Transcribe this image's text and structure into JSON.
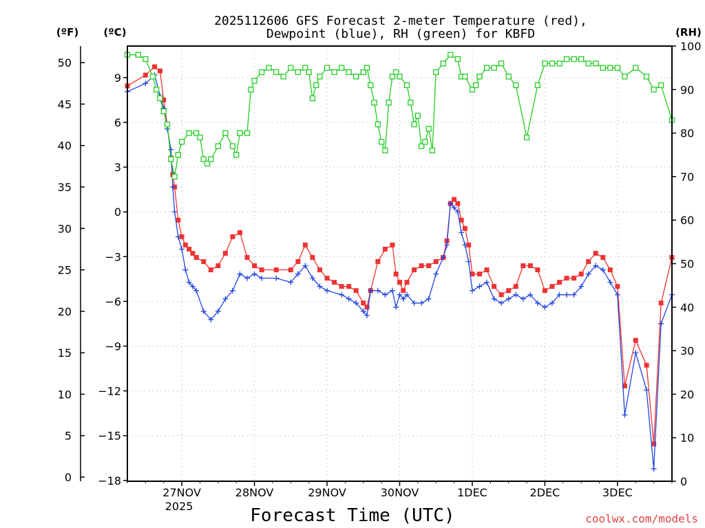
{
  "chart_data": {
    "type": "line",
    "title_line1": "2025112606 GFS Forecast 2-meter Temperature (red),",
    "title_line2": "Dewpoint (blue), RH (green) for KBFD",
    "xlabel": "Forecast Time (UTC)",
    "credit": "coolwx.com/models",
    "unit_f": "(ºF)",
    "unit_c": "(ºC)",
    "unit_rh": "(RH)",
    "x_range": [
      0.25,
      7.75
    ],
    "x_ticks": [
      {
        "x": 1,
        "label": "27NOV",
        "sub": "2025"
      },
      {
        "x": 2,
        "label": "28NOV",
        "sub": ""
      },
      {
        "x": 3,
        "label": "29NOV",
        "sub": ""
      },
      {
        "x": 4,
        "label": "30NOV",
        "sub": ""
      },
      {
        "x": 5,
        "label": "1DEC",
        "sub": ""
      },
      {
        "x": 6,
        "label": "2DEC",
        "sub": ""
      },
      {
        "x": 7,
        "label": "3DEC",
        "sub": ""
      }
    ],
    "y_f_range": [
      -0.5,
      52
    ],
    "y_f_ticks": [
      "50",
      "45",
      "40",
      "35",
      "30",
      "25",
      "20",
      "15",
      "10",
      "5",
      "0"
    ],
    "y_c_ticks": [
      "9",
      "6",
      "3",
      "0",
      "−3",
      "−6",
      "−9",
      "−12",
      "−15",
      "−18"
    ],
    "y_rh_range": [
      0,
      100
    ],
    "y_rh_ticks": [
      "100",
      "90",
      "80",
      "70",
      "60",
      "50",
      "40",
      "30",
      "20",
      "10",
      "0"
    ],
    "series": [
      {
        "name": "Temperature",
        "color": "#ee3333",
        "marker": "filled-square",
        "points": [
          [
            0.25,
            47.2
          ],
          [
            0.5,
            48.5
          ],
          [
            0.625,
            49.5
          ],
          [
            0.7,
            49.0
          ],
          [
            0.75,
            45.5
          ],
          [
            0.8,
            42.5
          ],
          [
            0.85,
            38.5
          ],
          [
            0.875,
            36.5
          ],
          [
            0.9,
            35.0
          ],
          [
            0.95,
            31.0
          ],
          [
            1.0,
            29.0
          ],
          [
            1.05,
            28.0
          ],
          [
            1.1,
            27.5
          ],
          [
            1.15,
            27.0
          ],
          [
            1.2,
            26.5
          ],
          [
            1.3,
            26.0
          ],
          [
            1.4,
            25.0
          ],
          [
            1.5,
            25.5
          ],
          [
            1.6,
            27.0
          ],
          [
            1.7,
            29.0
          ],
          [
            1.8,
            29.5
          ],
          [
            1.9,
            26.5
          ],
          [
            2.0,
            25.5
          ],
          [
            2.1,
            25.0
          ],
          [
            2.3,
            25.0
          ],
          [
            2.5,
            25.0
          ],
          [
            2.6,
            26.0
          ],
          [
            2.7,
            28.0
          ],
          [
            2.8,
            26.5
          ],
          [
            2.9,
            25.0
          ],
          [
            3.0,
            24.0
          ],
          [
            3.1,
            23.5
          ],
          [
            3.2,
            23.0
          ],
          [
            3.3,
            23.0
          ],
          [
            3.4,
            22.5
          ],
          [
            3.5,
            21.0
          ],
          [
            3.55,
            20.5
          ],
          [
            3.6,
            22.5
          ],
          [
            3.7,
            26.0
          ],
          [
            3.8,
            27.5
          ],
          [
            3.9,
            28.0
          ],
          [
            3.95,
            24.5
          ],
          [
            4.0,
            23.5
          ],
          [
            4.05,
            22.5
          ],
          [
            4.1,
            23.5
          ],
          [
            4.2,
            25.0
          ],
          [
            4.3,
            25.5
          ],
          [
            4.4,
            25.5
          ],
          [
            4.5,
            26.0
          ],
          [
            4.6,
            26.5
          ],
          [
            4.65,
            28.5
          ],
          [
            4.7,
            33.0
          ],
          [
            4.75,
            33.5
          ],
          [
            4.8,
            33.0
          ],
          [
            4.85,
            31.0
          ],
          [
            4.9,
            30.0
          ],
          [
            4.95,
            28.0
          ],
          [
            5.0,
            24.5
          ],
          [
            5.1,
            24.5
          ],
          [
            5.2,
            25.0
          ],
          [
            5.3,
            23.0
          ],
          [
            5.4,
            22.0
          ],
          [
            5.5,
            22.5
          ],
          [
            5.6,
            23.0
          ],
          [
            5.7,
            25.5
          ],
          [
            5.8,
            25.5
          ],
          [
            5.9,
            25.0
          ],
          [
            6.0,
            22.5
          ],
          [
            6.1,
            23.0
          ],
          [
            6.2,
            23.5
          ],
          [
            6.3,
            24.0
          ],
          [
            6.4,
            24.0
          ],
          [
            6.5,
            24.5
          ],
          [
            6.6,
            26.0
          ],
          [
            6.7,
            27.0
          ],
          [
            6.8,
            26.5
          ],
          [
            6.9,
            25.0
          ],
          [
            7.0,
            23.0
          ],
          [
            7.1,
            11.0
          ],
          [
            7.25,
            16.5
          ],
          [
            7.4,
            13.5
          ],
          [
            7.5,
            4.0
          ],
          [
            7.6,
            21.0
          ],
          [
            7.75,
            26.5
          ]
        ]
      },
      {
        "name": "Dewpoint",
        "color": "#2244dd",
        "marker": "plus",
        "points": [
          [
            0.25,
            46.5
          ],
          [
            0.5,
            47.5
          ],
          [
            0.625,
            48.5
          ],
          [
            0.7,
            46.0
          ],
          [
            0.75,
            44.5
          ],
          [
            0.8,
            42.0
          ],
          [
            0.85,
            39.5
          ],
          [
            0.875,
            35.0
          ],
          [
            0.9,
            32.0
          ],
          [
            0.95,
            29.0
          ],
          [
            1.0,
            27.5
          ],
          [
            1.05,
            25.0
          ],
          [
            1.1,
            23.5
          ],
          [
            1.15,
            23.0
          ],
          [
            1.2,
            22.5
          ],
          [
            1.3,
            20.0
          ],
          [
            1.4,
            19.0
          ],
          [
            1.5,
            20.0
          ],
          [
            1.6,
            21.5
          ],
          [
            1.7,
            22.5
          ],
          [
            1.8,
            24.5
          ],
          [
            1.9,
            24.0
          ],
          [
            2.0,
            24.5
          ],
          [
            2.1,
            24.0
          ],
          [
            2.3,
            24.0
          ],
          [
            2.5,
            23.5
          ],
          [
            2.6,
            24.5
          ],
          [
            2.7,
            25.5
          ],
          [
            2.8,
            24.0
          ],
          [
            2.9,
            23.0
          ],
          [
            3.0,
            22.5
          ],
          [
            3.2,
            22.0
          ],
          [
            3.3,
            21.5
          ],
          [
            3.4,
            21.0
          ],
          [
            3.5,
            20.0
          ],
          [
            3.55,
            19.5
          ],
          [
            3.6,
            22.5
          ],
          [
            3.7,
            22.5
          ],
          [
            3.8,
            22.0
          ],
          [
            3.9,
            22.5
          ],
          [
            3.95,
            20.5
          ],
          [
            4.0,
            22.0
          ],
          [
            4.05,
            21.5
          ],
          [
            4.1,
            22.0
          ],
          [
            4.2,
            21.0
          ],
          [
            4.3,
            21.0
          ],
          [
            4.4,
            21.5
          ],
          [
            4.5,
            24.5
          ],
          [
            4.6,
            26.5
          ],
          [
            4.65,
            28.0
          ],
          [
            4.7,
            33.0
          ],
          [
            4.75,
            32.5
          ],
          [
            4.8,
            32.0
          ],
          [
            4.85,
            29.5
          ],
          [
            4.9,
            28.0
          ],
          [
            4.95,
            26.0
          ],
          [
            5.0,
            22.5
          ],
          [
            5.1,
            23.0
          ],
          [
            5.2,
            23.5
          ],
          [
            5.3,
            21.5
          ],
          [
            5.4,
            21.0
          ],
          [
            5.5,
            21.5
          ],
          [
            5.6,
            22.0
          ],
          [
            5.7,
            21.5
          ],
          [
            5.8,
            22.0
          ],
          [
            5.9,
            21.0
          ],
          [
            6.0,
            20.5
          ],
          [
            6.1,
            21.0
          ],
          [
            6.2,
            22.0
          ],
          [
            6.3,
            22.0
          ],
          [
            6.4,
            22.0
          ],
          [
            6.5,
            23.0
          ],
          [
            6.6,
            24.5
          ],
          [
            6.7,
            25.5
          ],
          [
            6.8,
            25.0
          ],
          [
            6.9,
            23.5
          ],
          [
            7.0,
            22.0
          ],
          [
            7.1,
            7.5
          ],
          [
            7.25,
            15.0
          ],
          [
            7.4,
            10.5
          ],
          [
            7.5,
            1.0
          ],
          [
            7.6,
            18.5
          ],
          [
            7.75,
            22.0
          ]
        ]
      },
      {
        "name": "RH",
        "color": "#22cc22",
        "marker": "open-square",
        "axis": "rh",
        "points": [
          [
            0.25,
            98
          ],
          [
            0.4,
            98
          ],
          [
            0.5,
            97
          ],
          [
            0.6,
            93
          ],
          [
            0.65,
            90
          ],
          [
            0.7,
            88
          ],
          [
            0.75,
            85
          ],
          [
            0.8,
            82
          ],
          [
            0.85,
            74
          ],
          [
            0.9,
            70
          ],
          [
            0.95,
            75
          ],
          [
            1.0,
            78
          ],
          [
            1.1,
            80
          ],
          [
            1.2,
            80
          ],
          [
            1.25,
            79
          ],
          [
            1.3,
            74
          ],
          [
            1.35,
            73
          ],
          [
            1.4,
            74
          ],
          [
            1.5,
            77
          ],
          [
            1.6,
            80
          ],
          [
            1.7,
            77
          ],
          [
            1.75,
            75
          ],
          [
            1.8,
            80
          ],
          [
            1.9,
            80
          ],
          [
            1.95,
            90
          ],
          [
            2.0,
            92
          ],
          [
            2.1,
            94
          ],
          [
            2.2,
            95
          ],
          [
            2.3,
            94
          ],
          [
            2.4,
            93
          ],
          [
            2.5,
            95
          ],
          [
            2.6,
            94
          ],
          [
            2.7,
            95
          ],
          [
            2.75,
            94
          ],
          [
            2.8,
            88
          ],
          [
            2.85,
            91
          ],
          [
            2.9,
            93
          ],
          [
            3.0,
            95
          ],
          [
            3.1,
            94
          ],
          [
            3.2,
            95
          ],
          [
            3.3,
            94
          ],
          [
            3.4,
            93
          ],
          [
            3.5,
            94
          ],
          [
            3.55,
            95
          ],
          [
            3.6,
            91
          ],
          [
            3.65,
            87
          ],
          [
            3.7,
            82
          ],
          [
            3.75,
            78
          ],
          [
            3.8,
            76
          ],
          [
            3.85,
            87
          ],
          [
            3.9,
            93
          ],
          [
            3.95,
            94
          ],
          [
            4.0,
            93
          ],
          [
            4.1,
            91
          ],
          [
            4.15,
            87
          ],
          [
            4.2,
            82
          ],
          [
            4.25,
            84
          ],
          [
            4.3,
            77
          ],
          [
            4.35,
            78
          ],
          [
            4.4,
            81
          ],
          [
            4.45,
            76
          ],
          [
            4.5,
            94
          ],
          [
            4.6,
            96
          ],
          [
            4.7,
            98
          ],
          [
            4.8,
            97
          ],
          [
            4.85,
            93
          ],
          [
            4.9,
            93
          ],
          [
            5.0,
            90
          ],
          [
            5.05,
            91
          ],
          [
            5.1,
            93
          ],
          [
            5.2,
            95
          ],
          [
            5.3,
            95
          ],
          [
            5.4,
            96
          ],
          [
            5.5,
            93
          ],
          [
            5.6,
            91
          ],
          [
            5.75,
            79
          ],
          [
            5.9,
            91
          ],
          [
            6.0,
            96
          ],
          [
            6.1,
            96
          ],
          [
            6.2,
            96
          ],
          [
            6.3,
            97
          ],
          [
            6.4,
            97
          ],
          [
            6.5,
            97
          ],
          [
            6.6,
            96
          ],
          [
            6.7,
            96
          ],
          [
            6.8,
            95
          ],
          [
            6.9,
            95
          ],
          [
            7.0,
            95
          ],
          [
            7.1,
            93
          ],
          [
            7.25,
            95
          ],
          [
            7.4,
            93
          ],
          [
            7.5,
            90
          ],
          [
            7.6,
            91
          ],
          [
            7.75,
            83
          ]
        ]
      }
    ]
  }
}
